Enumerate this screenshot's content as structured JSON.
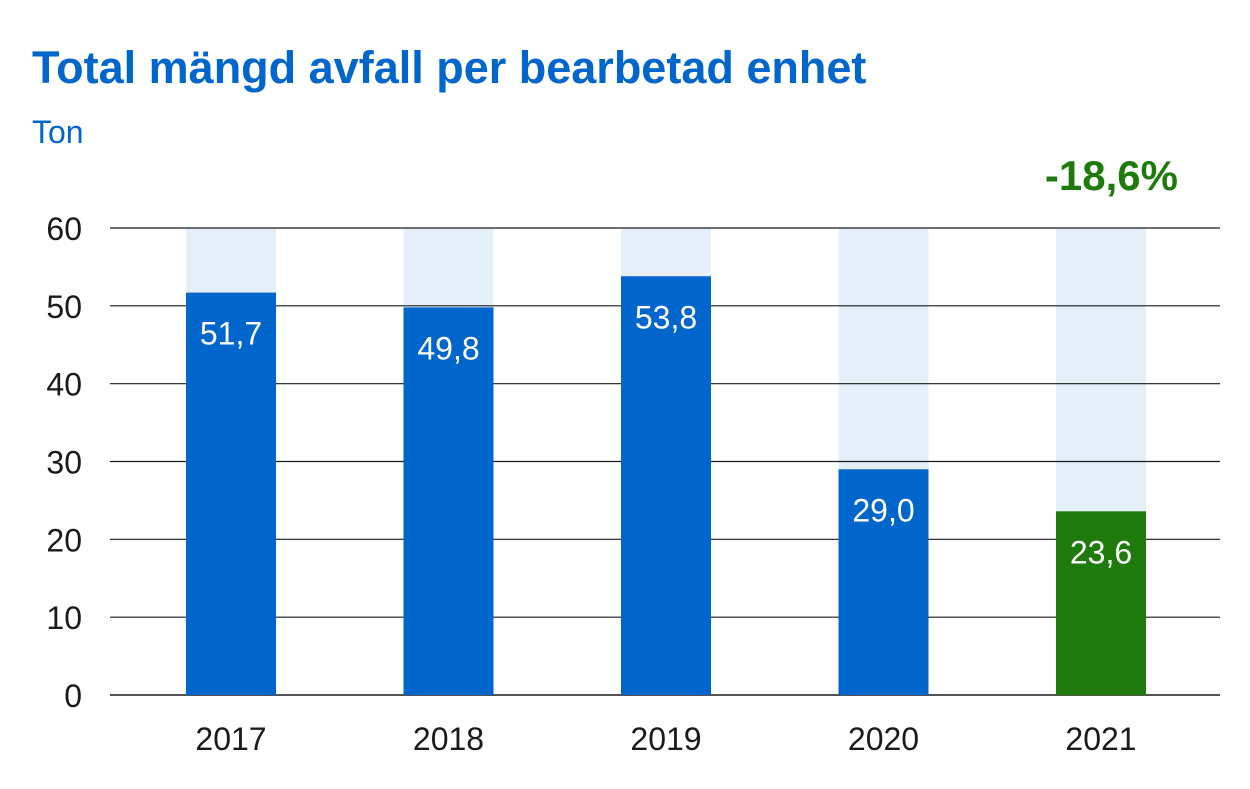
{
  "colors": {
    "title": "#0066cc",
    "unit": "#0066cc",
    "bar_default": "#0066cc",
    "bar_highlight": "#1e7a0a",
    "bar_background": "#e4eff9",
    "change": "#1e7a0a",
    "gridline": "#1a1a1a",
    "axis_text": "#1a1a1a",
    "bar_label": "#ffffff"
  },
  "chart_data": {
    "type": "bar",
    "title": "Total mängd avfall per bearbetad enhet",
    "subtitle": "Ton",
    "change_label": "-18,6%",
    "categories": [
      "2017",
      "2018",
      "2019",
      "2020",
      "2021"
    ],
    "values": [
      51.7,
      49.8,
      53.8,
      29.0,
      23.6
    ],
    "value_labels": [
      "51,7",
      "49,8",
      "53,8",
      "29,0",
      "23,6"
    ],
    "highlight_category": "2021",
    "ylim": [
      0,
      60
    ],
    "yticks": [
      0,
      10,
      20,
      30,
      40,
      50,
      60
    ],
    "grid": true,
    "legend": "none"
  }
}
